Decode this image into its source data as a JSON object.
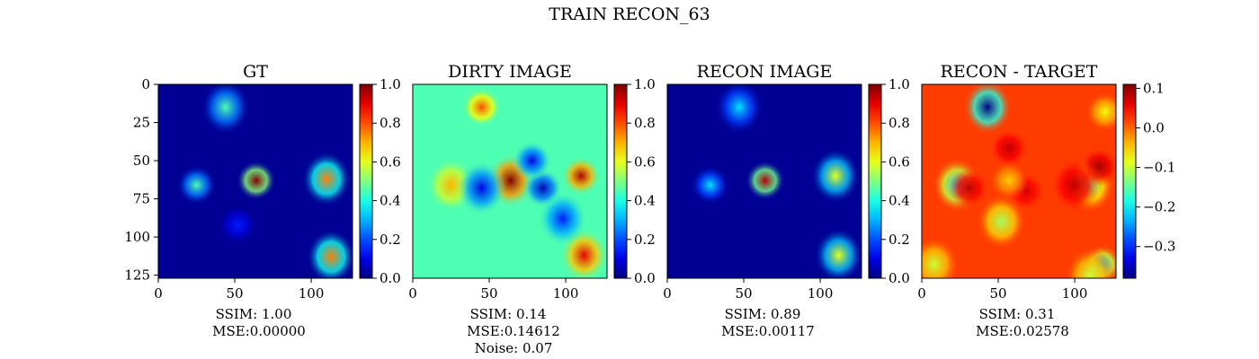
{
  "figure": {
    "title": "TRAIN RECON_63"
  },
  "chart_data": [
    {
      "type": "heatmap",
      "title": "GT",
      "show_yticks": true,
      "xticks": [
        0,
        50,
        100
      ],
      "yticks": [
        0,
        25,
        50,
        75,
        100,
        125
      ],
      "xlim": [
        0,
        127
      ],
      "ylim": [
        0,
        127
      ],
      "colorbar": {
        "min": 0.0,
        "max": 1.0,
        "ticks": [
          "0.0",
          "0.2",
          "0.4",
          "0.6",
          "0.8",
          "1.0"
        ],
        "tick_values": [
          0,
          0.2,
          0.4,
          0.6,
          0.8,
          1.0
        ]
      },
      "background": 0.02,
      "blobs": [
        {
          "x": 44,
          "y": 15,
          "value": 0.45
        },
        {
          "x": 64,
          "y": 63,
          "value": 1.0
        },
        {
          "x": 110,
          "y": 62,
          "value": 0.75
        },
        {
          "x": 25,
          "y": 66,
          "value": 0.45
        },
        {
          "x": 113,
          "y": 113,
          "value": 0.75
        },
        {
          "x": 52,
          "y": 92,
          "value": 0.15
        }
      ],
      "caption": [
        "SSIM: 1.00",
        "MSE:0.00000"
      ]
    },
    {
      "type": "heatmap",
      "title": "DIRTY IMAGE",
      "show_yticks": false,
      "xticks": [
        0,
        50,
        100
      ],
      "xlim": [
        0,
        127
      ],
      "ylim": [
        0,
        127
      ],
      "colorbar": {
        "min": 0.0,
        "max": 1.0,
        "ticks": [
          "0.0",
          "0.2",
          "0.4",
          "0.6",
          "0.8",
          "1.0"
        ],
        "tick_values": [
          0,
          0.2,
          0.4,
          0.6,
          0.8,
          1.0
        ]
      },
      "background": 0.45,
      "blobs": [
        {
          "x": 64,
          "y": 63,
          "value": 1.0
        },
        {
          "x": 110,
          "y": 60,
          "value": 0.95
        },
        {
          "x": 112,
          "y": 112,
          "value": 0.9
        },
        {
          "x": 45,
          "y": 15,
          "value": 0.8
        },
        {
          "x": 25,
          "y": 66,
          "value": 0.7
        },
        {
          "x": 85,
          "y": 68,
          "value": 0.05
        },
        {
          "x": 45,
          "y": 68,
          "value": 0.1
        },
        {
          "x": 78,
          "y": 50,
          "value": 0.1
        },
        {
          "x": 98,
          "y": 88,
          "value": 0.15
        }
      ],
      "caption": [
        "SSIM: 0.14",
        "MSE:0.14612",
        "Noise: 0.07"
      ]
    },
    {
      "type": "heatmap",
      "title": "RECON IMAGE",
      "show_yticks": false,
      "xticks": [
        0,
        50,
        100
      ],
      "xlim": [
        0,
        127
      ],
      "ylim": [
        0,
        127
      ],
      "colorbar": {
        "min": 0.0,
        "max": 1.0,
        "ticks": [
          "0.0",
          "0.2",
          "0.4",
          "0.6",
          "0.8",
          "1.0"
        ],
        "tick_values": [
          0,
          0.2,
          0.4,
          0.6,
          0.8,
          1.0
        ]
      },
      "background": 0.02,
      "blobs": [
        {
          "x": 47,
          "y": 15,
          "value": 0.35
        },
        {
          "x": 64,
          "y": 63,
          "value": 0.95
        },
        {
          "x": 110,
          "y": 60,
          "value": 0.6
        },
        {
          "x": 28,
          "y": 66,
          "value": 0.35
        },
        {
          "x": 112,
          "y": 112,
          "value": 0.6
        }
      ],
      "caption": [
        "SSIM: 0.89",
        "MSE:0.00117"
      ]
    },
    {
      "type": "heatmap",
      "title": "RECON - TARGET",
      "show_yticks": false,
      "xticks": [
        0,
        50,
        100
      ],
      "xlim": [
        0,
        127
      ],
      "ylim": [
        0,
        127
      ],
      "colorbar": {
        "min": -0.38,
        "max": 0.11,
        "ticks": [
          "0.1",
          "0.0",
          "−0.1",
          "−0.2",
          "−0.3"
        ],
        "tick_values": [
          0.1,
          0.0,
          -0.1,
          -0.2,
          -0.3
        ]
      },
      "background": 0.02,
      "blobs": [
        {
          "x": 43,
          "y": 15,
          "value": -0.38
        },
        {
          "x": 57,
          "y": 42,
          "value": 0.08
        },
        {
          "x": 23,
          "y": 66,
          "value": -0.22
        },
        {
          "x": 31,
          "y": 68,
          "value": 0.08
        },
        {
          "x": 110,
          "y": 66,
          "value": -0.15
        },
        {
          "x": 116,
          "y": 54,
          "value": 0.09
        },
        {
          "x": 100,
          "y": 66,
          "value": 0.08
        },
        {
          "x": 68,
          "y": 70,
          "value": 0.07
        },
        {
          "x": 52,
          "y": 90,
          "value": -0.12
        },
        {
          "x": 118,
          "y": 118,
          "value": -0.22
        },
        {
          "x": 110,
          "y": 125,
          "value": -0.1
        },
        {
          "x": 120,
          "y": 18,
          "value": -0.08
        },
        {
          "x": 8,
          "y": 118,
          "value": -0.1
        },
        {
          "x": 57,
          "y": 63,
          "value": -0.05
        }
      ],
      "caption": [
        "SSIM: 0.31",
        "MSE:0.02578"
      ]
    }
  ]
}
